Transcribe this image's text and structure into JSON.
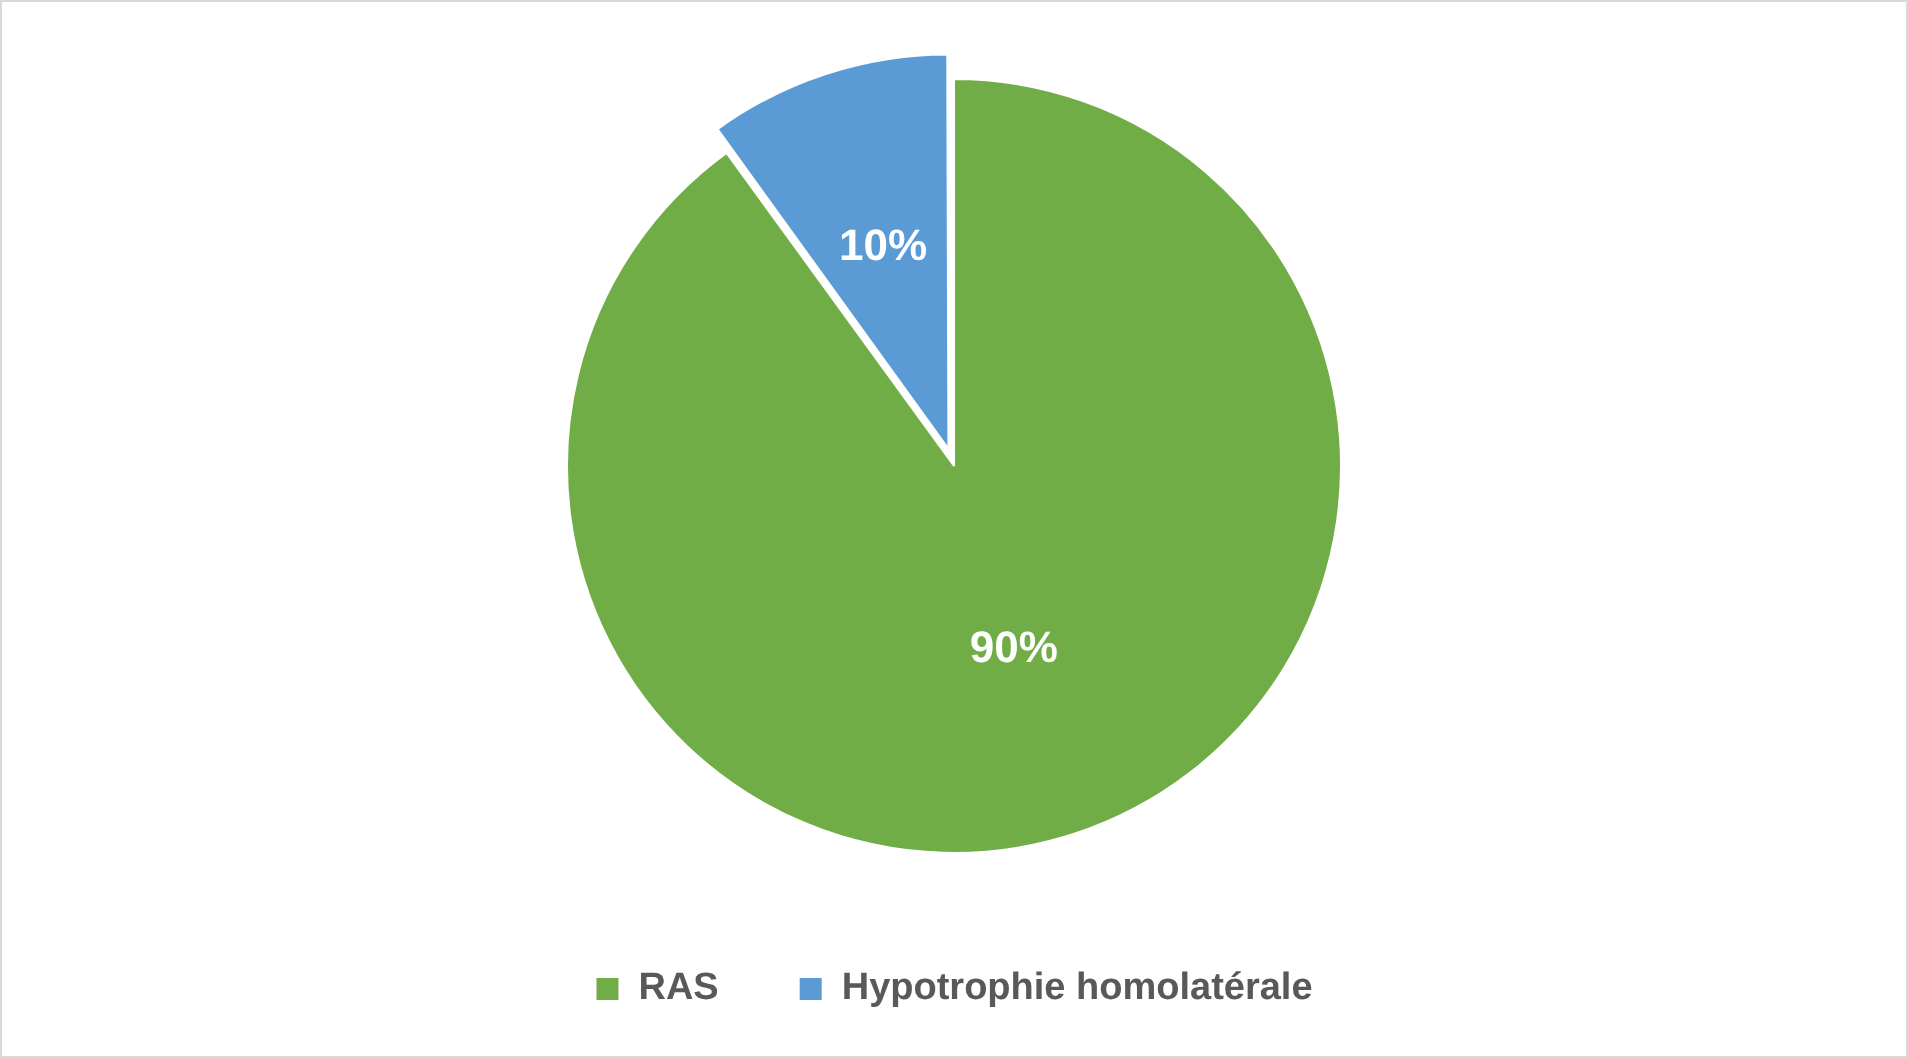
{
  "chart_data": {
    "type": "pie",
    "categories": [
      "RAS",
      "Hypotrophie homolatérale"
    ],
    "values": [
      90,
      10
    ],
    "colors": [
      "#70ad47",
      "#5b9bd5"
    ],
    "value_labels": [
      "90%",
      "10%"
    ],
    "legend": "bottom"
  }
}
